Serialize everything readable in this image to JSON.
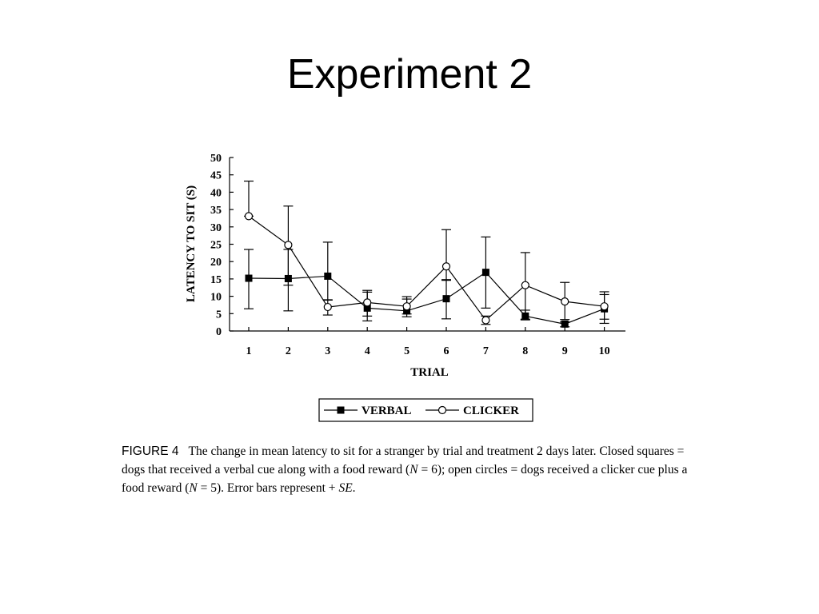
{
  "slide": {
    "title": "Experiment 2"
  },
  "figure": {
    "label": "FIGURE 4",
    "caption_1": "The change in mean latency to sit for a stranger by trial and treatment 2 days later. Closed squares = dogs that received a verbal cue along with a food reward (",
    "caption_n1_var": "N",
    "caption_n1_val": " = 6); open circles = dogs received a clicker cue plus a food reward (",
    "caption_n2_var": "N",
    "caption_n2_val": " = 5). Error bars represent + ",
    "caption_se": "SE",
    "caption_end": "."
  },
  "chart_data": {
    "type": "line",
    "xlabel": "TRIAL",
    "ylabel": "LATENCY TO SIT (S)",
    "x": [
      1,
      2,
      3,
      4,
      5,
      6,
      7,
      8,
      9,
      10
    ],
    "ylim": [
      0,
      50
    ],
    "yticks": [
      0,
      5,
      10,
      15,
      20,
      25,
      30,
      35,
      40,
      45,
      50
    ],
    "grid": false,
    "legend_position": "bottom",
    "series": [
      {
        "name": "VERBAL",
        "marker": "closed-square",
        "color": "#000000",
        "values": [
          15.2,
          15.1,
          15.8,
          6.6,
          5.8,
          9.3,
          16.9,
          4.3,
          2.0,
          6.4
        ],
        "error_low": [
          6.4,
          5.8,
          8.9,
          2.9,
          4.1,
          3.5,
          6.6,
          3.2,
          1.2,
          2.2
        ],
        "error_high": [
          23.5,
          23.5,
          25.6,
          11.7,
          9.9,
          14.8,
          27.1,
          6.0,
          2.6,
          10.5
        ]
      },
      {
        "name": "CLICKER",
        "marker": "open-circle",
        "color": "#000000",
        "values": [
          33.1,
          24.8,
          6.9,
          8.2,
          7.1,
          18.6,
          3.1,
          13.2,
          8.5,
          7.1
        ],
        "error_low": [
          33.1,
          13.2,
          4.6,
          4.3,
          4.9,
          14.6,
          1.9,
          3.4,
          3.3,
          3.4
        ],
        "error_high": [
          43.2,
          36.0,
          9.0,
          11.2,
          9.2,
          29.2,
          4.3,
          22.6,
          14.0,
          11.3
        ]
      }
    ]
  }
}
